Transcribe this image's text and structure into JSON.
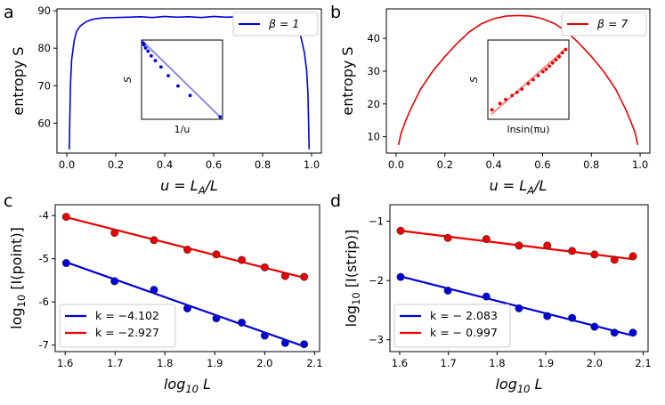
{
  "chart_data": [
    {
      "panel": "a",
      "type": "line",
      "xlabel": "u = L_A/L",
      "ylabel": "entropy S",
      "xlim": [
        -0.04,
        1.04
      ],
      "ylim": [
        52,
        90.5
      ],
      "xticks": [
        0.0,
        0.2,
        0.4,
        0.6,
        0.8,
        1.0
      ],
      "xtick_labels": [
        "0.0",
        "0.2",
        "0.4",
        "0.6",
        "0.8",
        "1.0"
      ],
      "yticks": [
        60,
        70,
        80,
        90
      ],
      "ytick_labels": [
        "60",
        "70",
        "80",
        "90"
      ],
      "legend": "top-right",
      "series": [
        {
          "name": "β = 1",
          "color": "#0000dd",
          "x": [
            0.01,
            0.015,
            0.02,
            0.03,
            0.04,
            0.05,
            0.06,
            0.08,
            0.1,
            0.12,
            0.15,
            0.2,
            0.25,
            0.3,
            0.35,
            0.4,
            0.45,
            0.5,
            0.55,
            0.6,
            0.65,
            0.7,
            0.75,
            0.8,
            0.85,
            0.88,
            0.9,
            0.92,
            0.94,
            0.95,
            0.96,
            0.97,
            0.98,
            0.985,
            0.99
          ],
          "y": [
            53,
            70,
            77,
            82,
            84.5,
            85.5,
            86.2,
            87.1,
            87.6,
            87.9,
            88.1,
            88.2,
            88.3,
            88.4,
            88.2,
            88.5,
            88.3,
            88.4,
            88.2,
            88.5,
            88.3,
            88.4,
            88.2,
            88.1,
            87.9,
            87.6,
            87.1,
            86.2,
            85.5,
            84.5,
            82,
            79,
            74,
            68,
            53
          ]
        }
      ],
      "inset": {
        "xlabel": "1/u",
        "ylabel": "S",
        "points": [
          [
            0.02,
            0.96
          ],
          [
            0.03,
            0.94
          ],
          [
            0.05,
            0.9
          ],
          [
            0.08,
            0.86
          ],
          [
            0.12,
            0.8
          ],
          [
            0.17,
            0.74
          ],
          [
            0.24,
            0.66
          ],
          [
            0.33,
            0.55
          ],
          [
            0.45,
            0.42
          ],
          [
            0.6,
            0.3
          ],
          [
            0.97,
            0.03
          ]
        ],
        "fit": [
          [
            0.0,
            1.0
          ],
          [
            0.97,
            0.03
          ]
        ]
      }
    },
    {
      "panel": "b",
      "type": "line",
      "xlabel": "u = L_A/L",
      "ylabel": "entropy S",
      "xlim": [
        -0.04,
        1.04
      ],
      "ylim": [
        5,
        49
      ],
      "xticks": [
        0.0,
        0.2,
        0.4,
        0.6,
        0.8,
        1.0
      ],
      "xtick_labels": [
        "0.0",
        "0.2",
        "0.4",
        "0.6",
        "0.8",
        "1.0"
      ],
      "yticks": [
        10,
        20,
        30,
        40
      ],
      "ytick_labels": [
        "10",
        "20",
        "30",
        "40"
      ],
      "legend": "top-right",
      "series": [
        {
          "name": "β = 7",
          "color": "#ee0000",
          "x": [
            0.01,
            0.02,
            0.04,
            0.06,
            0.08,
            0.1,
            0.15,
            0.2,
            0.25,
            0.3,
            0.35,
            0.4,
            0.45,
            0.5,
            0.55,
            0.6,
            0.65,
            0.7,
            0.75,
            0.8,
            0.85,
            0.9,
            0.92,
            0.94,
            0.96,
            0.98,
            0.99
          ],
          "y": [
            7.5,
            11,
            15,
            18.5,
            21.5,
            24.5,
            30,
            34.5,
            38.5,
            42,
            44.5,
            46,
            46.8,
            47,
            46.8,
            46,
            44.5,
            42,
            38.5,
            34.5,
            30,
            24.5,
            21.5,
            18.5,
            15,
            11,
            7.5
          ]
        }
      ],
      "inset": {
        "xlabel": "lnsin(πu)",
        "ylabel": "S",
        "points": [
          [
            0.05,
            0.12
          ],
          [
            0.15,
            0.2
          ],
          [
            0.22,
            0.25
          ],
          [
            0.3,
            0.3
          ],
          [
            0.36,
            0.34
          ],
          [
            0.42,
            0.38
          ],
          [
            0.5,
            0.45
          ],
          [
            0.56,
            0.5
          ],
          [
            0.62,
            0.55
          ],
          [
            0.68,
            0.6
          ],
          [
            0.72,
            0.63
          ],
          [
            0.76,
            0.67
          ],
          [
            0.8,
            0.71
          ],
          [
            0.84,
            0.75
          ],
          [
            0.88,
            0.79
          ],
          [
            0.92,
            0.84
          ],
          [
            0.96,
            0.88
          ]
        ],
        "fit": [
          [
            0.04,
            0.06
          ],
          [
            0.97,
            0.9
          ]
        ]
      }
    },
    {
      "panel": "c",
      "type": "scatter",
      "xlabel": "log10 L",
      "ylabel": "log10 [I(point)]",
      "xlim": [
        1.58,
        2.11
      ],
      "ylim": [
        -7.15,
        -3.75
      ],
      "xticks": [
        1.6,
        1.7,
        1.8,
        1.9,
        2.0,
        2.1
      ],
      "xtick_labels": [
        "1.6",
        "1.7",
        "1.8",
        "1.9",
        "2.0",
        "2.1"
      ],
      "yticks": [
        -7,
        -6,
        -5,
        -4
      ],
      "ytick_labels": [
        "-7",
        "-6",
        "-5",
        "-4"
      ],
      "legend": "lower-left",
      "series": [
        {
          "name": "k = −4.102",
          "color": "#0000dd",
          "x": [
            1.602,
            1.699,
            1.778,
            1.845,
            1.903,
            1.954,
            2.0,
            2.041,
            2.079
          ],
          "y": [
            -5.1,
            -5.52,
            -5.72,
            -6.15,
            -6.38,
            -6.48,
            -6.78,
            -6.95,
            -6.98
          ],
          "fit": [
            [
              1.602,
              -5.08
            ],
            [
              2.079,
              -7.03
            ]
          ]
        },
        {
          "name": "k = −2.927",
          "color": "#ee0000",
          "x": [
            1.602,
            1.699,
            1.778,
            1.845,
            1.903,
            1.954,
            2.0,
            2.041,
            2.079
          ],
          "y": [
            -4.03,
            -4.4,
            -4.57,
            -4.79,
            -4.9,
            -5.03,
            -5.2,
            -5.4,
            -5.42
          ],
          "fit": [
            [
              1.602,
              -4.04
            ],
            [
              2.079,
              -5.44
            ]
          ]
        }
      ]
    },
    {
      "panel": "d",
      "type": "scatter",
      "xlabel": "log10 L",
      "ylabel": "log10 [I(strip)]",
      "xlim": [
        1.58,
        2.11
      ],
      "ylim": [
        -3.2,
        -0.72
      ],
      "xticks": [
        1.6,
        1.7,
        1.8,
        1.9,
        2.0,
        2.1
      ],
      "xtick_labels": [
        "1.6",
        "1.7",
        "1.8",
        "1.9",
        "2.0",
        "2.1"
      ],
      "yticks": [
        -3,
        -2,
        -1
      ],
      "ytick_labels": [
        "−3",
        "−2",
        "−1"
      ],
      "legend": "lower-left",
      "series": [
        {
          "name": "k = − 2.083",
          "color": "#0000dd",
          "x": [
            1.602,
            1.699,
            1.778,
            1.845,
            1.903,
            1.954,
            2.0,
            2.041,
            2.079
          ],
          "y": [
            -1.94,
            -2.17,
            -2.27,
            -2.47,
            -2.6,
            -2.63,
            -2.78,
            -2.88,
            -2.88
          ],
          "fit": [
            [
              1.602,
              -1.93
            ],
            [
              2.079,
              -2.93
            ]
          ]
        },
        {
          "name": "k = − 0.997",
          "color": "#ee0000",
          "x": [
            1.602,
            1.699,
            1.778,
            1.845,
            1.903,
            1.954,
            2.0,
            2.041,
            2.079
          ],
          "y": [
            -1.16,
            -1.28,
            -1.3,
            -1.41,
            -1.41,
            -1.5,
            -1.56,
            -1.65,
            -1.59
          ],
          "fit": [
            [
              1.602,
              -1.16
            ],
            [
              2.079,
              -1.64
            ]
          ]
        }
      ]
    }
  ]
}
